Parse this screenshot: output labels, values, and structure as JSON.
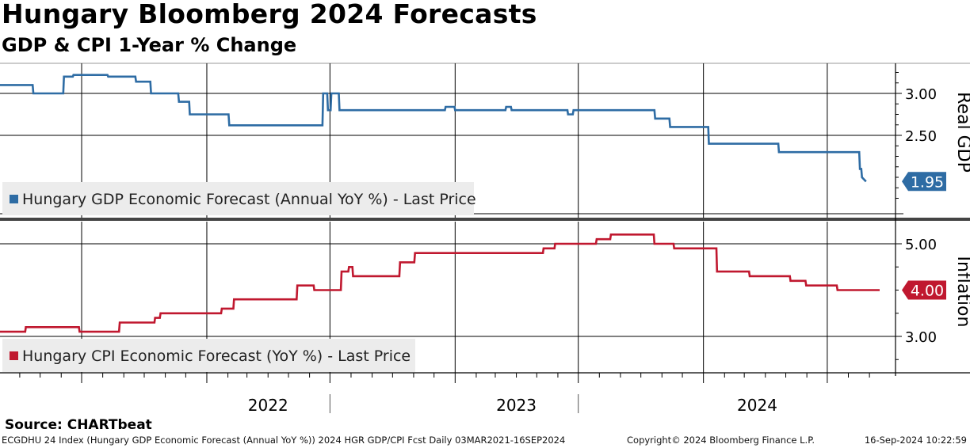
{
  "title": "Hungary Bloomberg 2024 Forecasts",
  "subtitle": "GDP & CPI 1-Year % Change",
  "source": "Source: CHARTbeat",
  "footer": {
    "left": "ECGDHU 24 Index (Hungary GDP Economic Forecast (Annual YoY %)) 2024 HGR GDP/CPI Fcst  Daily 03MAR2021-16SEP2024",
    "copyright": "Copyright© 2024 Bloomberg Finance L.P.",
    "timestamp": "16-Sep-2024 10:22:59"
  },
  "colors": {
    "gdp": "#2e6ca4",
    "cpi": "#c0182f",
    "grid": "#000000",
    "legend_bg": "#ececec"
  },
  "chart_data": [
    {
      "type": "line",
      "panel": "top",
      "ylabel": "Real GDP",
      "ylim": [
        1.5,
        3.3
      ],
      "yticks": [
        "3.00",
        "2.50"
      ],
      "legend": "Hungary GDP Economic Forecast (Annual YoY %) - Last Price",
      "last_value_label": "1.95",
      "series": [
        {
          "name": "Hungary GDP Economic Forecast (Annual YoY %) - Last Price",
          "x": [
            "2021-03-03",
            "2021-04-20",
            "2021-04-21",
            "2021-06-04",
            "2021-06-05",
            "2021-06-18",
            "2021-06-19",
            "2021-08-08",
            "2021-08-09",
            "2021-09-18",
            "2021-09-19",
            "2021-10-10",
            "2021-10-11",
            "2021-11-20",
            "2021-11-21",
            "2021-12-06",
            "2021-12-07",
            "2022-02-02",
            "2022-02-03",
            "2022-02-12",
            "2022-02-13",
            "2022-06-20",
            "2022-06-21",
            "2022-06-27",
            "2022-06-28",
            "2022-07-02",
            "2022-07-03",
            "2022-07-14",
            "2022-07-15",
            "2022-07-21",
            "2022-07-22",
            "2022-09-12",
            "2022-09-13",
            "2022-12-17",
            "2022-12-18",
            "2022-12-31",
            "2023-01-01",
            "2023-03-16",
            "2023-03-17",
            "2023-03-24",
            "2023-03-25",
            "2023-06-15",
            "2023-06-16",
            "2023-06-23",
            "2023-06-24",
            "2023-10-21",
            "2023-10-22",
            "2023-11-12",
            "2023-11-13",
            "2024-01-08",
            "2024-01-09",
            "2024-04-20",
            "2024-04-21",
            "2024-08-17",
            "2024-08-18",
            "2024-08-20",
            "2024-08-21",
            "2024-08-27"
          ],
          "values": [
            3.1,
            3.1,
            3.0,
            3.0,
            3.2,
            3.2,
            3.22,
            3.22,
            3.2,
            3.2,
            3.14,
            3.14,
            3.0,
            3.0,
            2.9,
            2.9,
            2.75,
            2.75,
            2.62,
            2.62,
            2.62,
            2.62,
            3.0,
            3.0,
            2.8,
            2.8,
            3.0,
            3.0,
            2.8,
            2.8,
            2.8,
            2.8,
            2.8,
            2.8,
            2.84,
            2.84,
            2.8,
            2.8,
            2.84,
            2.84,
            2.8,
            2.8,
            2.75,
            2.75,
            2.8,
            2.8,
            2.7,
            2.7,
            2.6,
            2.6,
            2.4,
            2.4,
            2.3,
            2.3,
            2.1,
            2.1,
            2.0,
            1.95
          ]
        }
      ]
    },
    {
      "type": "line",
      "panel": "bottom",
      "ylabel": "Inflation",
      "ylim": [
        2.5,
        5.3
      ],
      "yticks": [
        "5.00",
        "3.00"
      ],
      "legend": "Hungary CPI Economic Forecast (YoY %) - Last Price",
      "last_value_label": "4.00",
      "series": [
        {
          "name": "Hungary CPI Economic Forecast (YoY %) - Last Price",
          "x": [
            "2021-03-03",
            "2021-04-09",
            "2021-04-10",
            "2021-06-27",
            "2021-06-28",
            "2021-08-25",
            "2021-08-26",
            "2021-10-16",
            "2021-10-17",
            "2021-10-24",
            "2021-10-25",
            "2022-01-22",
            "2022-01-23",
            "2022-02-09",
            "2022-02-10",
            "2022-05-13",
            "2022-05-14",
            "2022-06-07",
            "2022-06-08",
            "2022-07-17",
            "2022-07-18",
            "2022-07-28",
            "2022-07-29",
            "2022-08-03",
            "2022-08-04",
            "2022-08-22",
            "2022-08-23",
            "2022-09-24",
            "2022-09-25",
            "2022-10-11",
            "2022-10-12",
            "2022-11-02",
            "2022-11-03",
            "2022-12-17",
            "2022-12-18",
            "2023-04-27",
            "2023-04-28",
            "2023-05-10",
            "2023-05-11",
            "2023-05-27",
            "2023-05-28",
            "2023-07-27",
            "2023-07-28",
            "2023-08-17",
            "2023-08-18",
            "2023-10-20",
            "2023-10-21",
            "2023-11-18",
            "2023-11-19",
            "2024-01-20",
            "2024-01-21",
            "2024-03-08",
            "2024-03-09",
            "2024-04-13",
            "2024-04-14",
            "2024-05-07",
            "2024-05-08",
            "2024-05-30",
            "2024-05-31",
            "2024-07-15",
            "2024-07-16",
            "2024-09-16"
          ],
          "values": [
            3.1,
            3.1,
            3.2,
            3.2,
            3.1,
            3.1,
            3.3,
            3.3,
            3.4,
            3.4,
            3.5,
            3.5,
            3.6,
            3.6,
            3.8,
            3.8,
            4.1,
            4.1,
            4.0,
            4.0,
            4.4,
            4.4,
            4.5,
            4.5,
            4.3,
            4.3,
            4.3,
            4.3,
            4.3,
            4.3,
            4.6,
            4.6,
            4.8,
            4.8,
            4.8,
            4.8,
            4.8,
            4.8,
            4.9,
            4.9,
            5.0,
            5.0,
            5.1,
            5.1,
            5.2,
            5.2,
            5.0,
            5.0,
            4.9,
            4.9,
            4.4,
            4.4,
            4.3,
            4.3,
            4.3,
            4.3,
            4.2,
            4.2,
            4.1,
            4.1,
            4.0,
            4.0
          ]
        }
      ]
    }
  ],
  "x_axis": {
    "labels": [
      "2022",
      "2023",
      "2024"
    ]
  }
}
